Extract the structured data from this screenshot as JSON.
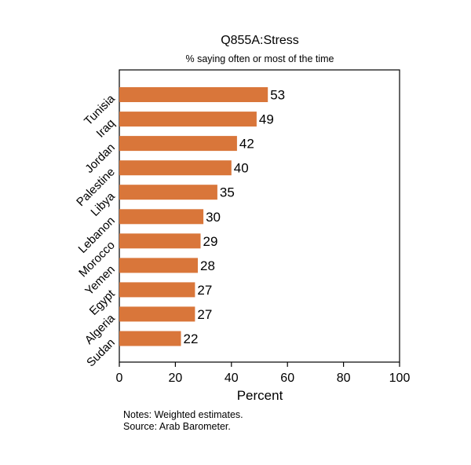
{
  "chart_data": {
    "type": "bar",
    "orientation": "horizontal",
    "title": "Q855A:Stress",
    "subtitle": "% saying often or most of the time",
    "xlabel": "Percent",
    "ylabel": "",
    "xlim": [
      0,
      100
    ],
    "xticks": [
      "0",
      "20",
      "40",
      "60",
      "80",
      "100"
    ],
    "categories": [
      "Tunisia",
      "Iraq",
      "Jordan",
      "Palestine",
      "Libya",
      "Lebanon",
      "Morocco",
      "Yemen",
      "Egypt",
      "Algeria",
      "Sudan"
    ],
    "values": [
      53,
      49,
      42,
      40,
      35,
      30,
      29,
      28,
      27,
      27,
      22
    ],
    "bar_color": "#d9763a",
    "grid": false,
    "legend": "none"
  },
  "notes": {
    "line1": "Notes: Weighted estimates.",
    "line2": "Source: Arab Barometer."
  }
}
